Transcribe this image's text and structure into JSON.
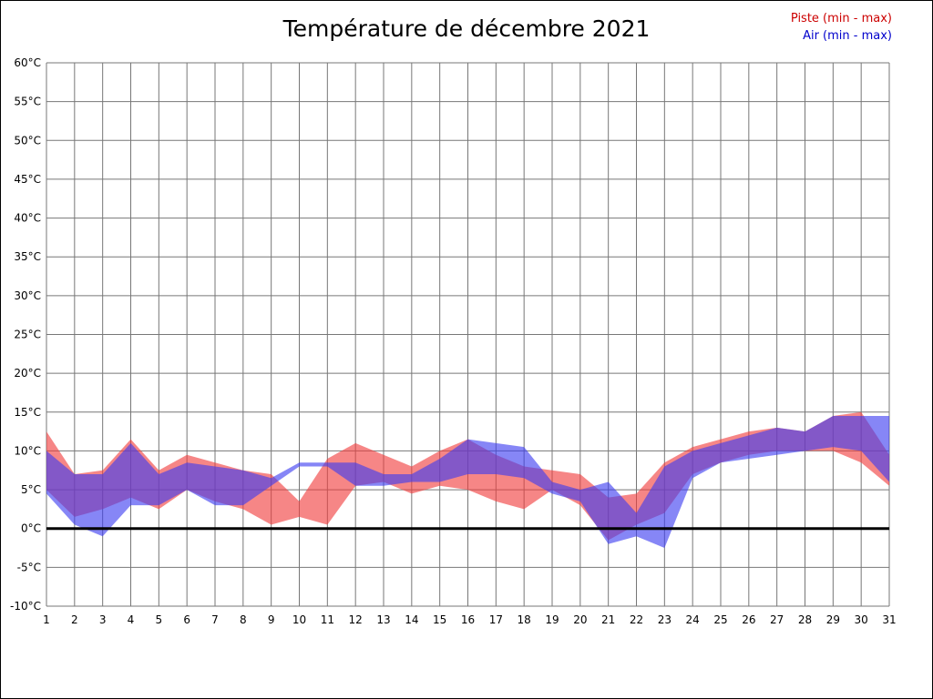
{
  "title": "Température de décembre 2021",
  "legend": {
    "piste_label": "Piste (min - max)",
    "air_label": "Air (min - max)"
  },
  "colors": {
    "piste_text": "#cc0000",
    "air_text": "#0000cc",
    "piste_fill": "#f03b3b",
    "air_fill": "#3b3bf0",
    "grid": "#777777",
    "zero_line": "#000000"
  },
  "chart_data": {
    "type": "area",
    "title": "Température de décembre 2021",
    "xlabel": "",
    "ylabel": "",
    "ylim": [
      -10,
      60
    ],
    "ytick_step": 5,
    "ytick_suffix": "°C",
    "grid": true,
    "legend_position": "top-right",
    "x": [
      1,
      2,
      3,
      4,
      5,
      6,
      7,
      8,
      9,
      10,
      11,
      12,
      13,
      14,
      15,
      16,
      17,
      18,
      19,
      20,
      21,
      22,
      23,
      24,
      25,
      26,
      27,
      28,
      29,
      30,
      31
    ],
    "series": [
      {
        "name": "Piste (min - max)",
        "band": true,
        "color": "#f03b3b",
        "max": [
          12.5,
          7,
          7.5,
          11.5,
          7.5,
          9.5,
          8.5,
          7.5,
          7,
          3.5,
          9,
          11,
          9.5,
          8,
          10,
          11.5,
          9.5,
          8,
          7.5,
          7,
          4,
          4.5,
          8.5,
          10.5,
          11.5,
          12.5,
          13,
          12.5,
          14.5,
          15,
          9.5
        ],
        "min": [
          5,
          1.5,
          2.5,
          4,
          2.5,
          5,
          3.5,
          2.5,
          0.5,
          1.5,
          0.5,
          5.5,
          6,
          4.5,
          5.5,
          5,
          3.5,
          2.5,
          5,
          3,
          -1.5,
          0.5,
          2,
          7,
          8.5,
          9.5,
          10,
          10,
          10,
          8.5,
          5.5
        ]
      },
      {
        "name": "Air (min - max)",
        "band": true,
        "color": "#3b3bf0",
        "max": [
          10,
          7,
          7,
          11,
          7,
          8.5,
          8,
          7.5,
          6.5,
          8.5,
          8.5,
          8.5,
          7,
          7,
          9,
          11.5,
          11,
          10.5,
          6,
          5,
          6,
          2,
          8,
          10,
          11,
          12,
          13,
          12.5,
          14.5,
          14.5,
          14.5
        ],
        "min": [
          4.5,
          0.5,
          -1,
          3,
          3,
          5,
          3,
          3,
          5.5,
          8,
          8,
          5.5,
          5.5,
          6,
          6,
          7,
          7,
          6.5,
          4.5,
          3.5,
          -2,
          -1,
          -2.5,
          6.5,
          8.5,
          9,
          9.5,
          10,
          10.5,
          10,
          6
        ]
      }
    ]
  }
}
